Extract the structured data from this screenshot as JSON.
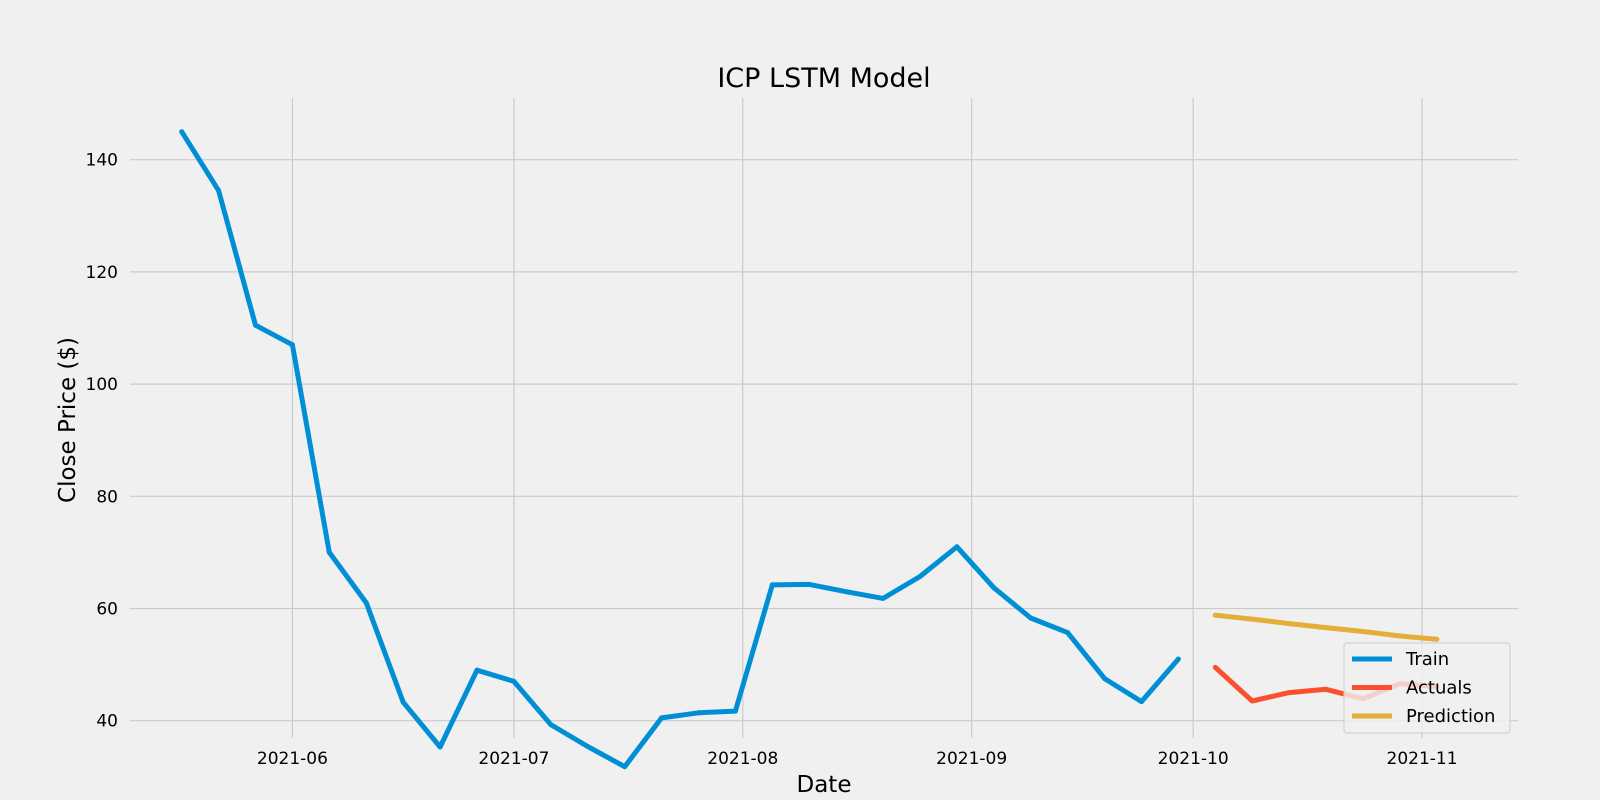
{
  "chart_data": {
    "type": "line",
    "title": "ICP LSTM Model",
    "xlabel": "Date",
    "ylabel": "Close Price ($)",
    "ylim": [
      28,
      151
    ],
    "xlim": [
      "2021-05-10",
      "2021-11-14"
    ],
    "yticks": [
      40,
      60,
      80,
      100,
      120,
      140
    ],
    "xticks": [
      "2021-06",
      "2021-07",
      "2021-08",
      "2021-09",
      "2021-10",
      "2021-11"
    ],
    "grid": true,
    "legend_position": "bottom-right",
    "series": [
      {
        "name": "Train",
        "color": "#008fd5",
        "x": [
          "2021-05-17",
          "2021-05-22",
          "2021-05-27",
          "2021-06-01",
          "2021-06-06",
          "2021-06-11",
          "2021-06-16",
          "2021-06-21",
          "2021-06-26",
          "2021-07-01",
          "2021-07-06",
          "2021-07-11",
          "2021-07-16",
          "2021-07-21",
          "2021-07-26",
          "2021-07-31",
          "2021-08-05",
          "2021-08-10",
          "2021-08-15",
          "2021-08-20",
          "2021-08-25",
          "2021-08-30",
          "2021-09-04",
          "2021-09-09",
          "2021-09-14",
          "2021-09-19",
          "2021-09-24",
          "2021-09-29"
        ],
        "values": [
          145,
          134.5,
          110.5,
          107,
          70,
          61,
          43.3,
          35.3,
          49,
          47,
          39.3,
          35.4,
          31.8,
          40.5,
          41.4,
          41.7,
          64.2,
          64.3,
          63,
          61.8,
          65.7,
          71,
          63.7,
          58.3,
          55.7,
          47.5,
          43.4,
          51
        ]
      },
      {
        "name": "Actuals",
        "color": "#fc4f30",
        "x": [
          "2021-10-04",
          "2021-10-09",
          "2021-10-14",
          "2021-10-19",
          "2021-10-24",
          "2021-10-29",
          "2021-11-03"
        ],
        "values": [
          49.5,
          43.5,
          45,
          45.6,
          43.9,
          46.6,
          46.1
        ]
      },
      {
        "name": "Prediction",
        "color": "#e5ae38",
        "x": [
          "2021-10-04",
          "2021-10-09",
          "2021-10-14",
          "2021-10-19",
          "2021-10-24",
          "2021-10-29",
          "2021-11-03"
        ],
        "values": [
          58.8,
          58.1,
          57.3,
          56.6,
          55.9,
          55.1,
          54.5
        ]
      }
    ]
  }
}
